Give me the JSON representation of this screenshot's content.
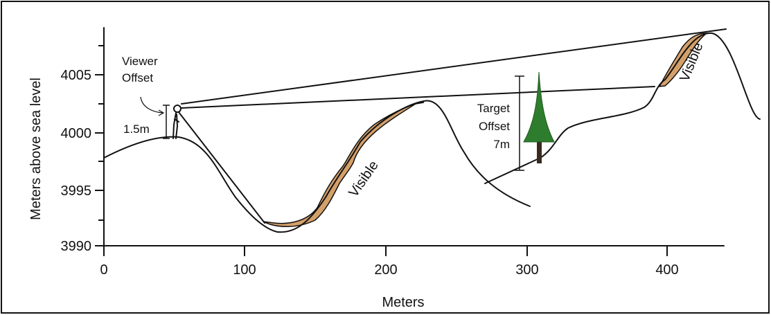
{
  "axes": {
    "x_label": "Meters",
    "y_label": "Meters above sea level",
    "x_ticks": [
      "0",
      "100",
      "200",
      "300",
      "400"
    ],
    "y_ticks": [
      "4005",
      "4000",
      "3995",
      "3990"
    ]
  },
  "annotations": {
    "viewer_offset": [
      "Viewer",
      "Offset"
    ],
    "viewer_height": "1.5m",
    "target_offset": [
      "Target",
      "Offset",
      "7m"
    ],
    "visible": [
      "Visible",
      "Visible"
    ]
  }
}
